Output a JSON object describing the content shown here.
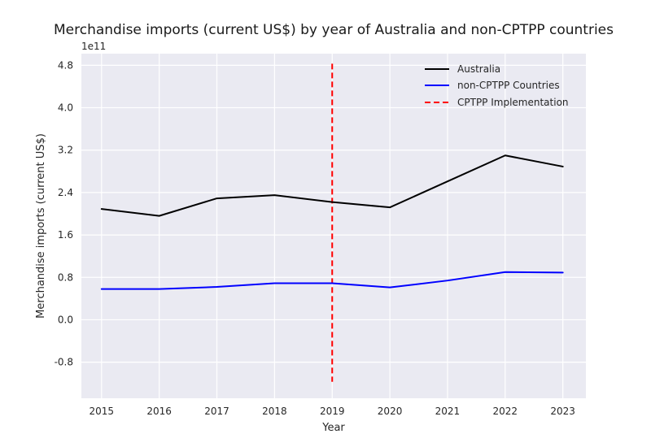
{
  "chart_data": {
    "type": "line",
    "title": "Merchandise imports (current US$) by year of Australia and non-CPTPP countries",
    "xlabel": "Year",
    "ylabel": "Merchandise imports (current US$)",
    "y_offset_text": "1e11",
    "x": [
      2015,
      2016,
      2017,
      2018,
      2019,
      2020,
      2021,
      2022,
      2023
    ],
    "x_ticks": [
      "2015",
      "2016",
      "2017",
      "2018",
      "2019",
      "2020",
      "2021",
      "2022",
      "2023"
    ],
    "xlim": [
      2014.65,
      2023.4
    ],
    "y_ticks": [
      "-0.8",
      "0.0",
      "0.8",
      "1.6",
      "2.4",
      "3.2",
      "4.0",
      "4.8"
    ],
    "y_tick_values": [
      -0.8,
      0.0,
      0.8,
      1.6,
      2.4,
      3.2,
      4.0,
      4.8
    ],
    "ylim": [
      -1.48,
      5.02
    ],
    "series": [
      {
        "name": "Australia",
        "color": "#000000",
        "style": "solid",
        "values": [
          2.09,
          1.96,
          2.29,
          2.35,
          2.22,
          2.12,
          2.61,
          3.1,
          2.89
        ]
      },
      {
        "name": "non-CPTPP Countries",
        "color": "#0000ff",
        "style": "solid",
        "values": [
          0.58,
          0.58,
          0.62,
          0.69,
          0.69,
          0.61,
          0.74,
          0.9,
          0.89
        ]
      }
    ],
    "annotations": [
      {
        "name": "CPTPP Implementation",
        "type": "vline",
        "x": 2019,
        "y_range": [
          -1.17,
          4.83
        ],
        "color": "#ff0000",
        "style": "dashed"
      }
    ],
    "grid": true,
    "legend_position": "top-right"
  }
}
